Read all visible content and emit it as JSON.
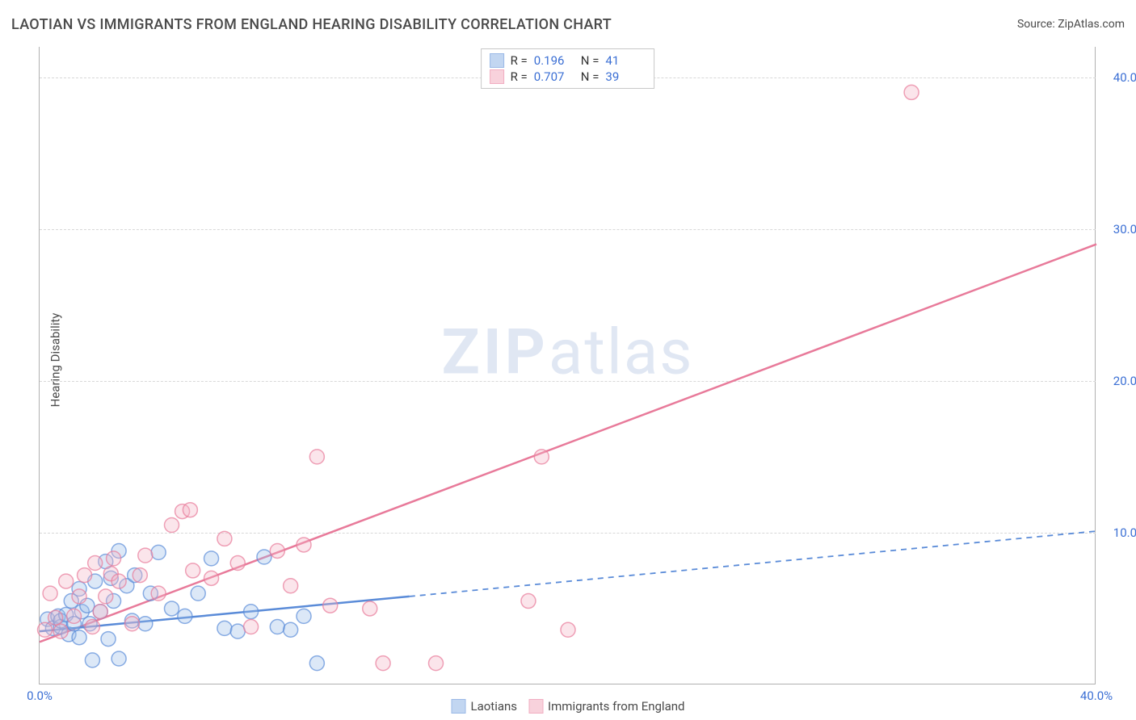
{
  "title": "LAOTIAN VS IMMIGRANTS FROM ENGLAND HEARING DISABILITY CORRELATION CHART",
  "source": "Source: ZipAtlas.com",
  "y_axis_label": "Hearing Disability",
  "watermark_bold": "ZIP",
  "watermark_light": "atlas",
  "chart": {
    "type": "scatter",
    "xlim": [
      0,
      40
    ],
    "ylim": [
      0,
      42
    ],
    "x_ticks": [
      0,
      40
    ],
    "x_tick_labels": [
      "0.0%",
      "40.0%"
    ],
    "y_ticks": [
      10,
      20,
      30,
      40
    ],
    "y_tick_labels": [
      "10.0%",
      "20.0%",
      "30.0%",
      "40.0%"
    ],
    "grid_color": "#d8d8d8",
    "axis_color": "#b0b0b0",
    "background_color": "#ffffff",
    "marker_radius": 9,
    "marker_stroke_width": 1.5,
    "marker_fill_opacity": 0.35,
    "trend_line_width": 2.5,
    "series": [
      {
        "name": "Laotians",
        "color_stroke": "#5a8bd8",
        "color_fill": "#9bbce8",
        "r_value": "0.196",
        "n_value": "41",
        "trend": {
          "x1": 0,
          "y1": 3.5,
          "x2": 14,
          "y2": 5.8,
          "dash_x2": 40,
          "dash_y2": 10.1
        },
        "points": [
          [
            0.3,
            4.3
          ],
          [
            0.5,
            3.7
          ],
          [
            0.7,
            4.5
          ],
          [
            0.8,
            3.8
          ],
          [
            0.8,
            4.2
          ],
          [
            1.0,
            4.6
          ],
          [
            1.1,
            3.3
          ],
          [
            1.2,
            5.5
          ],
          [
            1.3,
            4.0
          ],
          [
            1.5,
            3.1
          ],
          [
            1.5,
            6.3
          ],
          [
            1.6,
            4.8
          ],
          [
            1.8,
            5.2
          ],
          [
            1.9,
            4.0
          ],
          [
            2.0,
            1.6
          ],
          [
            2.1,
            6.8
          ],
          [
            2.3,
            4.8
          ],
          [
            2.5,
            8.1
          ],
          [
            2.6,
            3.0
          ],
          [
            2.7,
            7.0
          ],
          [
            2.8,
            5.5
          ],
          [
            3.0,
            1.7
          ],
          [
            3.0,
            8.8
          ],
          [
            3.3,
            6.5
          ],
          [
            3.5,
            4.2
          ],
          [
            3.6,
            7.2
          ],
          [
            4.0,
            4.0
          ],
          [
            4.2,
            6.0
          ],
          [
            4.5,
            8.7
          ],
          [
            5.0,
            5.0
          ],
          [
            5.5,
            4.5
          ],
          [
            6.0,
            6.0
          ],
          [
            6.5,
            8.3
          ],
          [
            7.0,
            3.7
          ],
          [
            7.5,
            3.5
          ],
          [
            8.0,
            4.8
          ],
          [
            8.5,
            8.4
          ],
          [
            9.0,
            3.8
          ],
          [
            9.5,
            3.6
          ],
          [
            10.0,
            4.5
          ],
          [
            10.5,
            1.4
          ]
        ]
      },
      {
        "name": "Immigrants from England",
        "color_stroke": "#e87a9a",
        "color_fill": "#f4b5c5",
        "r_value": "0.707",
        "n_value": "39",
        "trend": {
          "x1": 0,
          "y1": 2.8,
          "x2": 40,
          "y2": 29.0
        },
        "points": [
          [
            0.2,
            3.6
          ],
          [
            0.4,
            6.0
          ],
          [
            0.6,
            4.4
          ],
          [
            0.8,
            3.5
          ],
          [
            1.0,
            6.8
          ],
          [
            1.3,
            4.5
          ],
          [
            1.5,
            5.8
          ],
          [
            1.7,
            7.2
          ],
          [
            2.0,
            3.8
          ],
          [
            2.1,
            8.0
          ],
          [
            2.3,
            4.8
          ],
          [
            2.5,
            5.8
          ],
          [
            2.7,
            7.3
          ],
          [
            2.8,
            8.3
          ],
          [
            3.0,
            6.8
          ],
          [
            3.5,
            4.0
          ],
          [
            3.8,
            7.2
          ],
          [
            4.0,
            8.5
          ],
          [
            4.5,
            6.0
          ],
          [
            5.0,
            10.5
          ],
          [
            5.4,
            11.4
          ],
          [
            5.7,
            11.5
          ],
          [
            5.8,
            7.5
          ],
          [
            6.5,
            7.0
          ],
          [
            7.0,
            9.6
          ],
          [
            7.5,
            8.0
          ],
          [
            8.0,
            3.8
          ],
          [
            9.0,
            8.8
          ],
          [
            9.5,
            6.5
          ],
          [
            10.0,
            9.2
          ],
          [
            10.5,
            15.0
          ],
          [
            11.0,
            5.2
          ],
          [
            12.5,
            5.0
          ],
          [
            13.0,
            1.4
          ],
          [
            15.0,
            1.4
          ],
          [
            18.5,
            5.5
          ],
          [
            19.0,
            15.0
          ],
          [
            20.0,
            3.6
          ],
          [
            33.0,
            39.0
          ]
        ]
      }
    ]
  },
  "legend_top": {
    "r_label": "R  =",
    "n_label": "N  ="
  },
  "legend_bottom_labels": [
    "Laotians",
    "Immigrants from England"
  ]
}
